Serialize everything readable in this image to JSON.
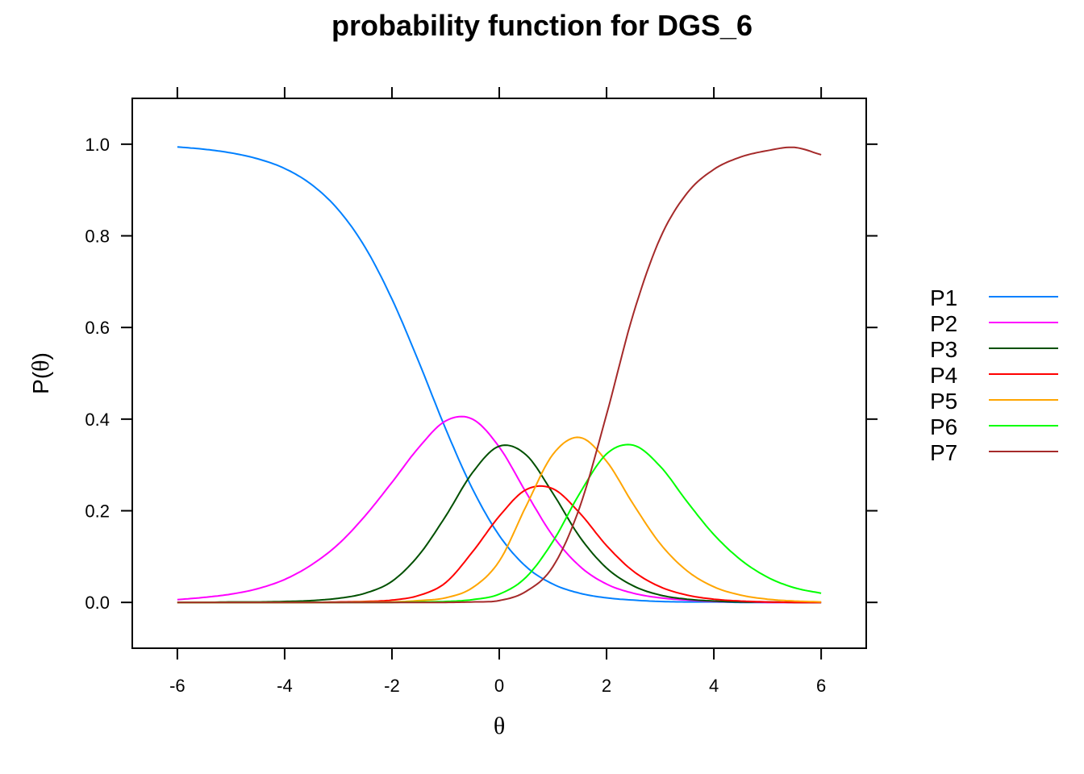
{
  "chart_data": {
    "type": "line",
    "title": "probability function for DGS_6",
    "xlabel": "θ",
    "ylabel_prefix": "P(",
    "ylabel_symbol": "θ",
    "ylabel_suffix": ")",
    "xlim": [
      -6.84,
      6.84
    ],
    "ylim": [
      -0.1,
      1.1
    ],
    "xticks": [
      -6,
      -4,
      -2,
      0,
      2,
      4,
      6
    ],
    "yticks": [
      0.0,
      0.2,
      0.4,
      0.6,
      0.8,
      1.0
    ],
    "xtick_labels": [
      "-6",
      "-4",
      "-2",
      "0",
      "2",
      "4",
      "6"
    ],
    "ytick_labels": [
      "0.0",
      "0.2",
      "0.4",
      "0.6",
      "0.8",
      "1.0"
    ],
    "grid": false,
    "legend_position": "right",
    "x": [
      -6.0,
      -5.5,
      -5.0,
      -4.5,
      -4.0,
      -3.5,
      -3.0,
      -2.5,
      -2.0,
      -1.5,
      -1.0,
      -0.5,
      0.0,
      0.5,
      1.0,
      1.5,
      2.0,
      2.5,
      3.0,
      3.5,
      4.0,
      4.5,
      5.0,
      5.5,
      6.0
    ],
    "series": [
      {
        "name": "P1",
        "color": "#0080ff",
        "values": [
          0.994,
          0.989,
          0.981,
          0.968,
          0.947,
          0.912,
          0.857,
          0.775,
          0.662,
          0.525,
          0.379,
          0.248,
          0.146,
          0.078,
          0.04,
          0.02,
          0.01,
          0.005,
          0.002,
          0.001,
          0.001,
          0.0,
          0.0,
          0.0,
          0.0
        ]
      },
      {
        "name": "P2",
        "color": "#ff00ff",
        "values": [
          0.006,
          0.011,
          0.018,
          0.03,
          0.05,
          0.082,
          0.127,
          0.189,
          0.262,
          0.338,
          0.396,
          0.4,
          0.339,
          0.24,
          0.145,
          0.079,
          0.04,
          0.02,
          0.01,
          0.005,
          0.002,
          0.001,
          0.0,
          0.0,
          0.0
        ]
      },
      {
        "name": "P3",
        "color": "#005000",
        "values": [
          0.0,
          0.0,
          0.001,
          0.001,
          0.002,
          0.004,
          0.009,
          0.02,
          0.046,
          0.103,
          0.188,
          0.283,
          0.341,
          0.322,
          0.238,
          0.143,
          0.075,
          0.036,
          0.016,
          0.007,
          0.003,
          0.001,
          0.001,
          0.0,
          0.0
        ]
      },
      {
        "name": "P4",
        "color": "#ff0000",
        "values": [
          0.0,
          0.0,
          0.0,
          0.0,
          0.0,
          0.0,
          0.001,
          0.002,
          0.005,
          0.015,
          0.043,
          0.11,
          0.188,
          0.246,
          0.248,
          0.195,
          0.124,
          0.068,
          0.034,
          0.016,
          0.007,
          0.003,
          0.001,
          0.0,
          0.0
        ]
      },
      {
        "name": "P5",
        "color": "#ffa500",
        "values": [
          0.0,
          0.0,
          0.0,
          0.0,
          0.0,
          0.0,
          0.0,
          0.001,
          0.001,
          0.004,
          0.01,
          0.032,
          0.09,
          0.21,
          0.323,
          0.36,
          0.308,
          0.214,
          0.128,
          0.069,
          0.034,
          0.016,
          0.007,
          0.003,
          0.001
        ]
      },
      {
        "name": "P6",
        "color": "#00ff00",
        "values": [
          0.0,
          0.0,
          0.0,
          0.0,
          0.0,
          0.0,
          0.0,
          0.0,
          0.0,
          0.001,
          0.002,
          0.006,
          0.018,
          0.055,
          0.133,
          0.238,
          0.324,
          0.343,
          0.297,
          0.22,
          0.148,
          0.093,
          0.055,
          0.032,
          0.02
        ]
      },
      {
        "name": "P7",
        "color": "#a52a2a",
        "values": [
          0.0,
          0.0,
          0.0,
          0.0,
          0.0,
          0.0,
          0.0,
          0.0,
          0.0,
          0.0,
          0.0,
          0.001,
          0.004,
          0.024,
          0.078,
          0.208,
          0.41,
          0.63,
          0.795,
          0.893,
          0.945,
          0.972,
          0.986,
          0.993,
          0.977
        ]
      }
    ]
  }
}
